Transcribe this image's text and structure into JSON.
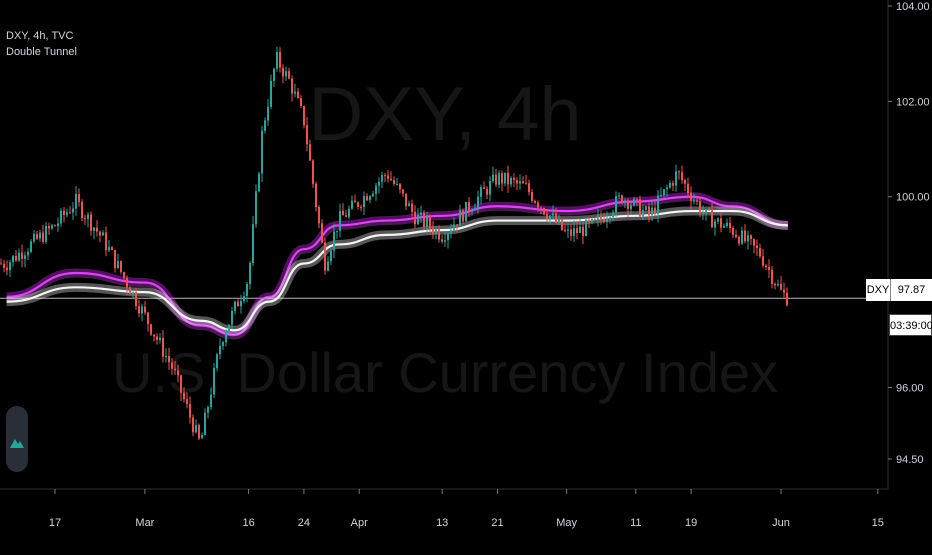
{
  "header": {
    "symbol_line": "DXY, 4h, TVC",
    "indicator_name": "Double Tunnel"
  },
  "watermark": {
    "symbol": "DXY, 4h",
    "description": "U.S. Dollar Currency Index"
  },
  "price_tag": {
    "symbol": "DXY",
    "price": "97.87",
    "countdown": "03:39:00"
  },
  "colors": {
    "background": "#000000",
    "up": "#26a69a",
    "down": "#ef5350",
    "tunnel_fast": "#e040fb",
    "tunnel_slow": "#f5f5f5",
    "price_line": "#b2b5be"
  },
  "chart_data": {
    "type": "line",
    "title": "",
    "xlabel": "",
    "ylabel": "",
    "x_ticks": [
      "17",
      "Mar",
      "16",
      "24",
      "Apr",
      "13",
      "21",
      "May",
      "11",
      "19",
      "Jun",
      "15"
    ],
    "y_ticks": [
      "104.00",
      "102.00",
      "100.00",
      "96.00",
      "94.50"
    ],
    "ylim": [
      94.0,
      104.0
    ],
    "last_price": 97.87,
    "series": [
      {
        "name": "",
        "kind": "price",
        "x": [
          "Feb 10",
          "Feb 17",
          "Feb 20",
          "Feb 24",
          "Mar 1",
          "Mar 5",
          "Mar 9",
          "Mar 12",
          "Mar 16",
          "Mar 18",
          "Mar 20",
          "Mar 22",
          "Mar 24",
          "Mar 27",
          "Mar 29",
          "Apr 1",
          "Apr 5",
          "Apr 9",
          "Apr 13",
          "Apr 17",
          "Apr 21",
          "Apr 25",
          "May 1",
          "May 5",
          "May 9",
          "May 13",
          "May 17",
          "May 21",
          "May 25",
          "May 29",
          "Jun 1",
          "Jun 2"
        ],
        "values": [
          98.6,
          99.4,
          99.9,
          99.1,
          97.5,
          96.4,
          94.8,
          97.0,
          98.3,
          101.4,
          102.9,
          102.4,
          101.6,
          98.6,
          99.5,
          99.9,
          100.5,
          99.6,
          99.2,
          99.8,
          100.4,
          100.2,
          99.2,
          99.4,
          100.0,
          99.6,
          100.5,
          99.6,
          99.3,
          98.8,
          98.0,
          97.87
        ]
      },
      {
        "name": "",
        "kind": "tunnel_fast",
        "x": [
          "Feb 10",
          "Feb 20",
          "Mar 1",
          "Mar 9",
          "Mar 14",
          "Mar 19",
          "Mar 24",
          "Mar 29",
          "Apr 5",
          "Apr 13",
          "Apr 21",
          "May 1",
          "May 11",
          "May 19",
          "May 25",
          "Jun 2"
        ],
        "values": [
          97.9,
          98.4,
          98.2,
          97.3,
          97.1,
          97.9,
          98.9,
          99.4,
          99.5,
          99.6,
          99.8,
          99.7,
          99.9,
          100.0,
          99.8,
          99.4
        ]
      },
      {
        "name": "",
        "kind": "tunnel_slow",
        "x": [
          "Feb 10",
          "Feb 20",
          "Mar 1",
          "Mar 9",
          "Mar 14",
          "Mar 19",
          "Mar 24",
          "Mar 29",
          "Apr 5",
          "Apr 13",
          "Apr 21",
          "May 1",
          "May 11",
          "May 19",
          "May 25",
          "Jun 2"
        ],
        "values": [
          97.8,
          98.1,
          98.0,
          97.4,
          97.2,
          97.8,
          98.6,
          99.0,
          99.2,
          99.3,
          99.5,
          99.5,
          99.6,
          99.7,
          99.7,
          99.4
        ]
      }
    ],
    "grid": false,
    "legend": "top-left"
  }
}
